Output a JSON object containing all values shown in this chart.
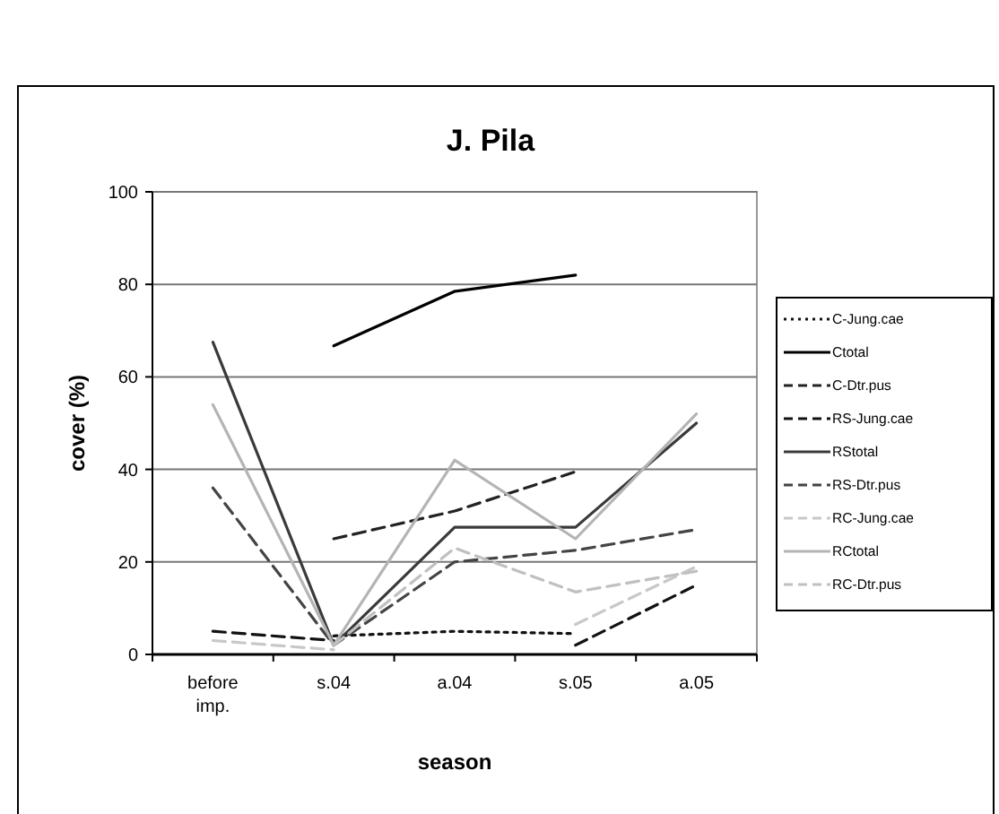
{
  "chart_data": {
    "type": "line",
    "title": "J. Pila",
    "xlabel": "season",
    "ylabel": "cover (%)",
    "categories": [
      "before imp.",
      "s.04",
      "a.04",
      "s.05",
      "a.05"
    ],
    "series": [
      {
        "name": "C-Jung.cae",
        "color": "#111111",
        "line_style": "dotted",
        "values": [
          null,
          4,
          5,
          4.5,
          null
        ]
      },
      {
        "name": "Ctotal",
        "color": "#000000",
        "line_style": "solid",
        "values": [
          null,
          66.7,
          78.5,
          82,
          null
        ]
      },
      {
        "name": "C-Dtr.pus",
        "color": "#222222",
        "line_style": "dashed",
        "values": [
          null,
          25,
          31,
          39.5,
          null
        ]
      },
      {
        "name": "RS-Jung.cae",
        "color": "#111111",
        "line_style": "dashed",
        "values": [
          5,
          3,
          null,
          2,
          15
        ]
      },
      {
        "name": "RStotal",
        "color": "#3a3a3a",
        "line_style": "solid",
        "values": [
          67.5,
          2,
          27.5,
          27.5,
          50
        ]
      },
      {
        "name": "RS-Dtr.pus",
        "color": "#444444",
        "line_style": "dashed",
        "values": [
          36,
          2,
          20,
          22.5,
          27
        ]
      },
      {
        "name": "RC-Jung.cae",
        "color": "#c8c8c8",
        "line_style": "dashed",
        "values": [
          3,
          1,
          null,
          6.5,
          19
        ]
      },
      {
        "name": "RCtotal",
        "color": "#b4b4b4",
        "line_style": "solid",
        "values": [
          54,
          2,
          42,
          25,
          52
        ]
      },
      {
        "name": "RC-Dtr.pus",
        "color": "#c0c0c0",
        "line_style": "dashed",
        "values": [
          null,
          2,
          23,
          13.5,
          18
        ]
      }
    ],
    "ylim": [
      0,
      100
    ],
    "yticks": [
      0,
      20,
      40,
      60,
      80,
      100
    ],
    "grid": "y",
    "legend": "right"
  }
}
